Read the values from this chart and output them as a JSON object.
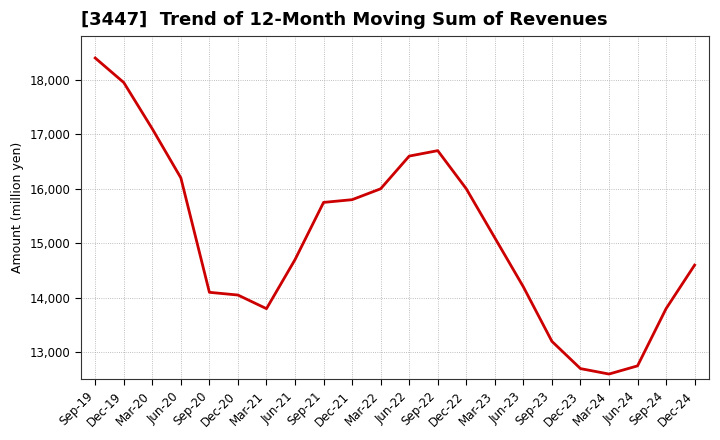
{
  "title": "[3447]  Trend of 12-Month Moving Sum of Revenues",
  "ylabel": "Amount (million yen)",
  "line_color": "#cc0000",
  "line_width": 2.0,
  "background_color": "#ffffff",
  "plot_bg_color": "#ffffff",
  "grid_color": "#aaaaaa",
  "grid_style": "dotted",
  "ylim": [
    12500,
    18800
  ],
  "yticks": [
    13000,
    14000,
    15000,
    16000,
    17000,
    18000
  ],
  "x_labels": [
    "Sep-19",
    "Dec-19",
    "Mar-20",
    "Jun-20",
    "Sep-20",
    "Dec-20",
    "Mar-21",
    "Jun-21",
    "Sep-21",
    "Dec-21",
    "Mar-22",
    "Jun-22",
    "Sep-22",
    "Dec-22",
    "Mar-23",
    "Jun-23",
    "Sep-23",
    "Dec-23",
    "Mar-24",
    "Jun-24",
    "Sep-24",
    "Dec-24"
  ],
  "y_values": [
    18400,
    17950,
    17100,
    16200,
    14100,
    14050,
    13800,
    14700,
    15750,
    15800,
    16000,
    16600,
    16700,
    16000,
    15100,
    14200,
    13200,
    12700,
    12600,
    12750,
    13800,
    14600
  ],
  "title_fontsize": 13,
  "tick_fontsize": 8.5,
  "ylabel_fontsize": 9
}
